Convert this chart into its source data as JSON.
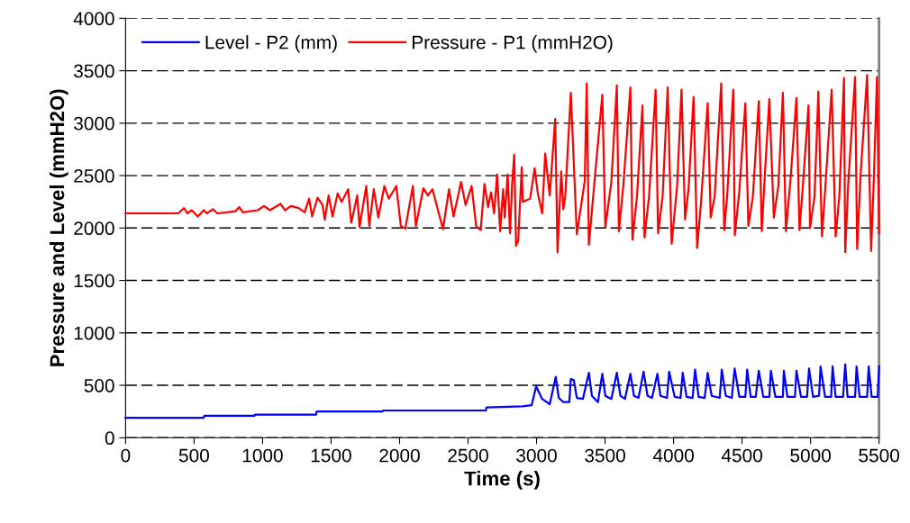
{
  "chart_data": {
    "type": "line",
    "xlabel": "Time (s)",
    "ylabel": "Pressure and Level (mmH2O)",
    "xlim": [
      0,
      5500
    ],
    "xticks": [
      0,
      500,
      1000,
      1500,
      2000,
      2500,
      3000,
      3500,
      4000,
      4500,
      5000,
      5500
    ],
    "ylim": [
      0,
      4000
    ],
    "yticks": [
      0,
      500,
      1000,
      1500,
      2000,
      2500,
      3000,
      3500,
      4000
    ],
    "grid": "y",
    "legend": "top left",
    "marker": "none",
    "line_style": "solid",
    "series": [
      {
        "name": "Level - P2 (mm)",
        "color": "#0000ff",
        "x": [
          0,
          570,
          575,
          940,
          945,
          1390,
          1395,
          1875,
          1880,
          2630,
          2635,
          2899,
          2964,
          2997,
          3041,
          3096,
          3140,
          3162,
          3195,
          3239,
          3250,
          3272,
          3294,
          3338,
          3382,
          3404,
          3448,
          3480,
          3502,
          3546,
          3586,
          3612,
          3645,
          3685,
          3711,
          3744,
          3781,
          3810,
          3843,
          3882,
          3904,
          3952,
          3968,
          4008,
          4051,
          4067,
          4095,
          4139,
          4157,
          4183,
          4227,
          4249,
          4278,
          4337,
          4352,
          4381,
          4425,
          4446,
          4480,
          4524,
          4537,
          4563,
          4600,
          4622,
          4655,
          4699,
          4710,
          4743,
          4798,
          4805,
          4831,
          4886,
          4897,
          4930,
          4974,
          4989,
          5018,
          5062,
          5073,
          5106,
          5150,
          5161,
          5183,
          5237,
          5253,
          5270,
          5325,
          5336,
          5358,
          5413,
          5424,
          5446,
          5490,
          5500
        ],
        "values": [
          190,
          190,
          210,
          210,
          220,
          220,
          250,
          250,
          260,
          260,
          290,
          300,
          310,
          490,
          370,
          320,
          580,
          380,
          340,
          340,
          560,
          550,
          380,
          370,
          620,
          400,
          340,
          610,
          400,
          370,
          620,
          400,
          370,
          610,
          400,
          380,
          630,
          400,
          380,
          610,
          400,
          380,
          630,
          390,
          380,
          620,
          390,
          380,
          650,
          390,
          380,
          620,
          400,
          380,
          650,
          400,
          380,
          660,
          390,
          390,
          650,
          390,
          390,
          640,
          390,
          390,
          640,
          390,
          390,
          640,
          390,
          390,
          640,
          390,
          390,
          660,
          390,
          400,
          680,
          390,
          390,
          680,
          390,
          390,
          700,
          390,
          390,
          680,
          390,
          390,
          680,
          390,
          390,
          680
        ]
      },
      {
        "name": "Pressure - P1 (mmH2O)",
        "color": "#ff0000",
        "x": [
          0,
          384,
          428,
          450,
          483,
          527,
          571,
          593,
          637,
          670,
          801,
          830,
          856,
          966,
          1010,
          1054,
          1131,
          1164,
          1208,
          1263,
          1307,
          1340,
          1362,
          1401,
          1438,
          1454,
          1482,
          1511,
          1548,
          1577,
          1625,
          1647,
          1691,
          1708,
          1757,
          1779,
          1812,
          1845,
          1889,
          1921,
          1976,
          2009,
          2042,
          2097,
          2119,
          2174,
          2207,
          2240,
          2317,
          2361,
          2394,
          2449,
          2482,
          2526,
          2559,
          2592,
          2620,
          2646,
          2668,
          2690,
          2712,
          2734,
          2756,
          2767,
          2789,
          2806,
          2822,
          2837,
          2850,
          2866,
          2892,
          2899,
          2953,
          2986,
          3008,
          3041,
          3063,
          3096,
          3107,
          3136,
          3153,
          3180,
          3195,
          3210,
          3250,
          3294,
          3352,
          3366,
          3382,
          3420,
          3480,
          3502,
          3546,
          3586,
          3601,
          3633,
          3685,
          3700,
          3733,
          3773,
          3788,
          3821,
          3869,
          3887,
          3920,
          3957,
          3986,
          4026,
          4058,
          4084,
          4110,
          4146,
          4172,
          4201,
          4249,
          4271,
          4300,
          4348,
          4370,
          4392,
          4436,
          4447,
          4480,
          4524,
          4546,
          4579,
          4622,
          4644,
          4666,
          4699,
          4732,
          4765,
          4798,
          4820,
          4853,
          4897,
          4919,
          4941,
          4985,
          4996,
          5029,
          5057,
          5083,
          5106,
          5154,
          5183,
          5210,
          5244,
          5253,
          5275,
          5325,
          5340,
          5365,
          5413,
          5442,
          5460,
          5485,
          5500
        ],
        "values": [
          2140,
          2140,
          2190,
          2140,
          2170,
          2110,
          2170,
          2140,
          2180,
          2140,
          2160,
          2200,
          2150,
          2170,
          2210,
          2170,
          2230,
          2170,
          2210,
          2190,
          2150,
          2280,
          2110,
          2290,
          2220,
          2080,
          2310,
          2110,
          2330,
          2250,
          2370,
          2050,
          2310,
          2010,
          2400,
          2020,
          2370,
          2100,
          2400,
          2280,
          2400,
          2020,
          1995,
          2400,
          2020,
          2380,
          2310,
          2370,
          1990,
          2370,
          2110,
          2440,
          2220,
          2400,
          2020,
          1980,
          2420,
          2200,
          2340,
          2140,
          2510,
          1970,
          2370,
          2100,
          2510,
          1950,
          2430,
          2700,
          1830,
          1880,
          2580,
          2250,
          2280,
          2570,
          2340,
          2140,
          2710,
          2310,
          2510,
          3040,
          1770,
          2540,
          2180,
          2310,
          3290,
          1940,
          2450,
          3380,
          1840,
          2400,
          3270,
          2010,
          2440,
          3360,
          1970,
          2400,
          3340,
          1890,
          2300,
          3170,
          1910,
          2300,
          3320,
          1950,
          2300,
          3340,
          1850,
          2400,
          3320,
          2080,
          2380,
          3250,
          1810,
          2250,
          3190,
          2100,
          2300,
          3380,
          1980,
          2320,
          3320,
          1930,
          2350,
          3190,
          2020,
          2300,
          3210,
          1970,
          2500,
          3230,
          2100,
          2400,
          3290,
          1970,
          2450,
          3240,
          1980,
          2350,
          3170,
          2000,
          2300,
          3300,
          1920,
          2350,
          3320,
          1920,
          2300,
          3430,
          1770,
          2420,
          3440,
          1800,
          2500,
          3460,
          1780,
          2400,
          3440,
          1950
        ]
      }
    ]
  }
}
